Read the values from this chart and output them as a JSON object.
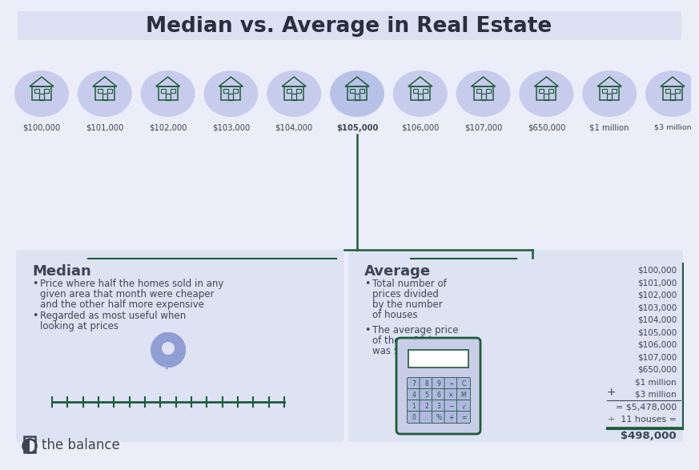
{
  "title": "Median vs. Average in Real Estate",
  "bg_color": "#ebedf8",
  "title_bar_color": "#dde0f2",
  "panel_color": "#dde3f3",
  "dark_green": "#1e5c3a",
  "text_color": "#3d4555",
  "pin_color": "#8f9fd4",
  "house_oval_color": "#c8ccec",
  "house_prices": [
    "$100,000",
    "$101,000",
    "$102,000",
    "$103,000",
    "$104,000",
    "$105,000",
    "$106,000",
    "$107,000",
    "$650,000",
    "$1 million",
    "$3 million"
  ],
  "median_title": "Median",
  "median_bullet1_lines": [
    "Price where half the homes sold in any",
    "given area that month were cheaper",
    "and the other half more expensive"
  ],
  "median_bullet2_lines": [
    "Regarded as most useful when",
    "looking at prices"
  ],
  "average_title": "Average",
  "avg_bullet1_lines": [
    "Total number of",
    "prices divided",
    "by the number",
    "of houses"
  ],
  "avg_bullet2_lines": [
    "The average price",
    "of these 11 houses",
    "was $498,000"
  ],
  "price_list": [
    "$100,000",
    "$101,000",
    "$102,000",
    "$103,000",
    "$104,000",
    "$105,000",
    "$106,000",
    "$107,000",
    "$650,000",
    "$1 million",
    "$3 million"
  ],
  "plus_label": "+",
  "sum_label": "= $5,478,000",
  "divide_label": "÷  11 houses =",
  "result_label": "$498,000",
  "brand_text": "the balance",
  "calc_btn_rows": [
    [
      "7",
      "8",
      "9",
      "÷",
      "C"
    ],
    [
      "4",
      "5",
      "6",
      "×",
      "M"
    ],
    [
      "1",
      "2",
      "3",
      "−",
      "√"
    ],
    [
      "0",
      ".",
      "%",
      "+",
      "="
    ]
  ]
}
